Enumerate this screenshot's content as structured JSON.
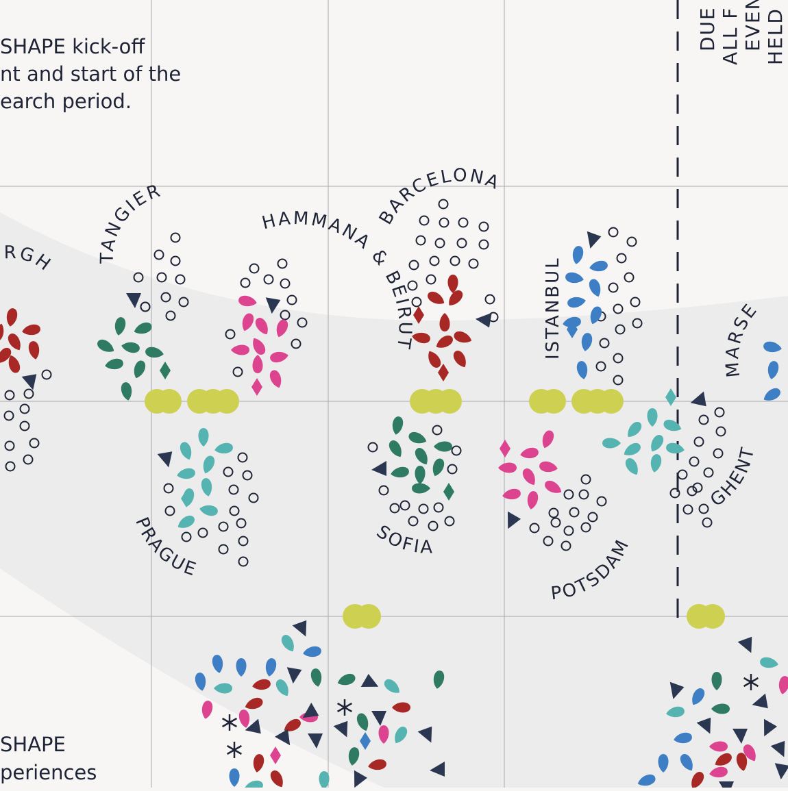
{
  "notes": {
    "top": [
      "SHAPE kick-off",
      "nt and start of the",
      "earch period."
    ],
    "bottom": [
      "SHAPE",
      "periences"
    ]
  },
  "vertical_note": [
    "DUE",
    "ALL F",
    "EVEN",
    "HELD"
  ],
  "cities": [
    {
      "id": "urgh",
      "label": "URGH"
    },
    {
      "id": "tangier",
      "label": "TANGIER"
    },
    {
      "id": "hammana",
      "label": "HAMMANA & BEIRUT"
    },
    {
      "id": "barcelona",
      "label": "BARCELONA"
    },
    {
      "id": "istanbul",
      "label": "ISTANBUL"
    },
    {
      "id": "marseille",
      "label": "MARSE"
    },
    {
      "id": "prague",
      "label": "PRAGUE"
    },
    {
      "id": "sofia",
      "label": "SOFIA"
    },
    {
      "id": "potsdam",
      "label": "POTSDAM"
    },
    {
      "id": "ghent",
      "label": "GHENT"
    }
  ],
  "colors": {
    "background": "#f7f6f4",
    "band": "#ececec",
    "grid": "#a9a9ae",
    "ink": "#1e2436",
    "red": "#a72824",
    "green": "#2f7a62",
    "pink": "#dc4490",
    "teal": "#55b3b1",
    "blue": "#3d7ec4",
    "lime": "#cdd051",
    "navy": "#2b3650"
  }
}
